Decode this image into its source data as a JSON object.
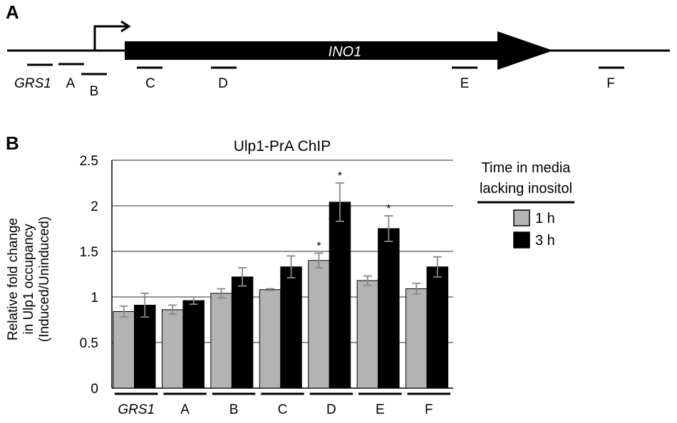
{
  "panel_a": {
    "letter": "A",
    "gene_label": "INO1",
    "regions": [
      "GRS1",
      "A",
      "B",
      "C",
      "D",
      "E",
      "F"
    ]
  },
  "panel_b": {
    "letter": "B"
  },
  "colors": {
    "series_1h": "#b3b3b3",
    "series_3h": "#000000",
    "error_bar": "#888888"
  },
  "chart_data": {
    "type": "bar",
    "title": "Ulp1-PrA ChIP",
    "ylabel_lines": [
      "Relative fold change",
      "in Ulp1 occupancy",
      "(Induced/Uninduced)"
    ],
    "xlabel": "",
    "categories": [
      "GRS1",
      "A",
      "B",
      "C",
      "D",
      "E",
      "F"
    ],
    "ylim": [
      0,
      2.5
    ],
    "yticks": [
      "0",
      "0.5",
      "1",
      "1.5",
      "2",
      "2.5"
    ],
    "grid": true,
    "legend": {
      "title_lines": [
        "Time in media",
        "lacking inositol"
      ],
      "placement": "right"
    },
    "series": [
      {
        "name": "1 h",
        "values": [
          0.84,
          0.86,
          1.04,
          1.08,
          1.4,
          1.18,
          1.09
        ],
        "errors": [
          0.06,
          0.05,
          0.05,
          0.01,
          0.08,
          0.05,
          0.06
        ],
        "significant": [
          false,
          false,
          false,
          false,
          true,
          false,
          false
        ]
      },
      {
        "name": "3 h",
        "values": [
          0.91,
          0.96,
          1.22,
          1.33,
          2.04,
          1.75,
          1.33
        ],
        "errors": [
          0.13,
          0.04,
          0.1,
          0.12,
          0.21,
          0.14,
          0.11
        ],
        "significant": [
          false,
          false,
          false,
          false,
          true,
          true,
          false
        ]
      }
    ],
    "significance_marker": "*"
  }
}
